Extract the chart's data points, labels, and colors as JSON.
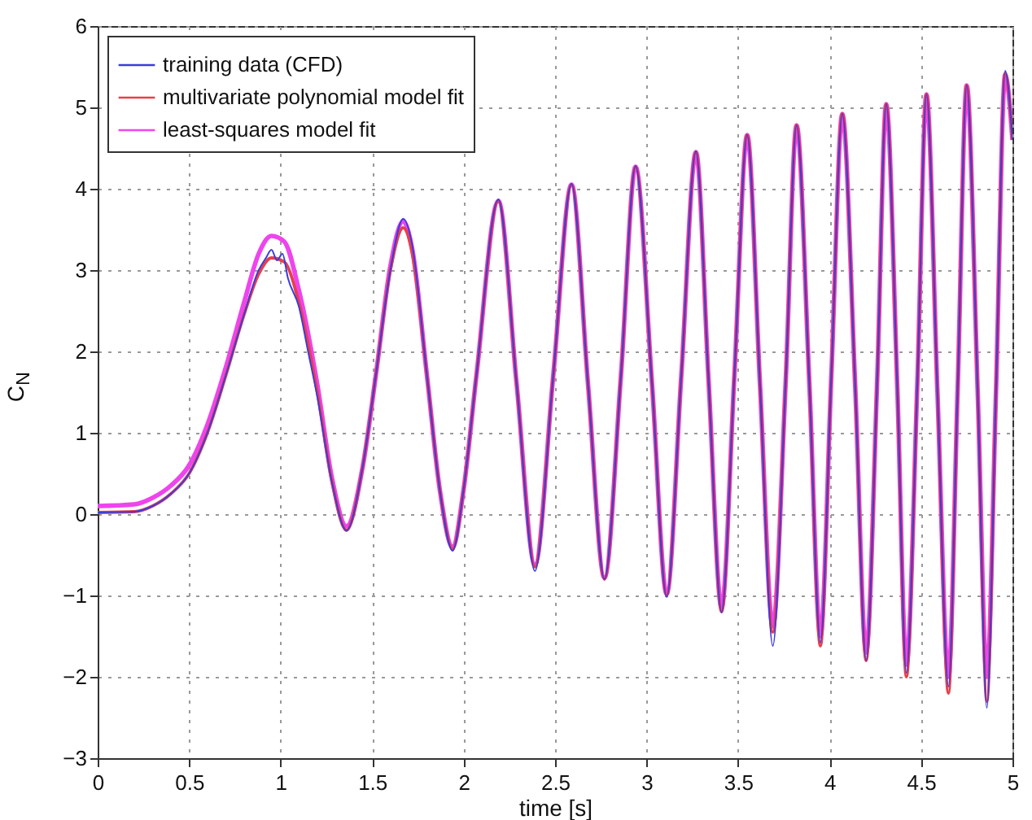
{
  "chart_data": {
    "type": "line",
    "xlabel": "time [s]",
    "ylabel": "C$_{N}$",
    "xlim": [
      0,
      5
    ],
    "ylim": [
      -3,
      6
    ],
    "xticks": [
      0,
      0.5,
      1,
      1.5,
      2,
      2.5,
      3,
      3.5,
      4,
      4.5,
      5
    ],
    "yticks": [
      -3,
      -2,
      -1,
      0,
      1,
      2,
      3,
      4,
      5,
      6
    ],
    "grid": true,
    "legend": "top left",
    "line_style": "solid",
    "marker": "none",
    "series": [
      {
        "name": "training data (CFD)",
        "color": "#3c3cdc",
        "x": [
          0,
          0.2,
          0.3,
          0.4,
          0.5,
          0.6,
          0.7,
          0.8,
          0.88,
          0.92,
          0.95,
          0.98,
          1.01,
          1.04,
          1.1,
          1.15,
          1.2,
          1.28,
          1.36,
          1.45,
          1.52,
          1.6,
          1.67,
          1.72,
          1.8,
          1.87,
          1.94,
          2.0,
          2.07,
          2.19,
          2.29,
          2.39,
          2.49,
          2.59,
          2.68,
          2.77,
          2.86,
          2.94,
          3.03,
          3.11,
          3.19,
          3.27,
          3.34,
          3.41,
          3.48,
          3.55,
          3.62,
          3.69,
          3.76,
          3.82,
          3.89,
          3.95,
          4.01,
          4.07,
          4.14,
          4.2,
          4.26,
          4.31,
          4.37,
          4.42,
          4.48,
          4.53,
          4.59,
          4.65,
          4.7,
          4.75,
          4.81,
          4.86,
          4.91,
          4.96,
          5.0
        ],
        "values": [
          0.02,
          0.03,
          0.1,
          0.25,
          0.5,
          1.0,
          1.7,
          2.45,
          3.0,
          3.15,
          3.25,
          3.12,
          3.2,
          2.9,
          2.55,
          2.0,
          1.45,
          0.4,
          -0.2,
          0.6,
          1.7,
          3.0,
          3.63,
          3.3,
          1.7,
          0.3,
          -0.45,
          0.3,
          1.7,
          3.87,
          1.6,
          -0.7,
          1.7,
          4.06,
          1.6,
          -0.8,
          1.7,
          4.28,
          1.6,
          -1.02,
          1.7,
          4.46,
          1.6,
          -1.21,
          1.7,
          4.66,
          1.6,
          -1.62,
          1.6,
          4.78,
          1.6,
          -1.58,
          1.7,
          4.92,
          1.6,
          -1.8,
          1.6,
          5.04,
          1.6,
          -1.95,
          1.6,
          5.16,
          1.5,
          -2.12,
          1.5,
          5.27,
          1.5,
          -2.38,
          1.5,
          5.45,
          4.6
        ]
      },
      {
        "name": "multivariate polynomial model fit",
        "color": "#e8404a",
        "x": [
          0,
          0.2,
          0.3,
          0.4,
          0.5,
          0.6,
          0.7,
          0.8,
          0.88,
          0.95,
          1.02,
          1.1,
          1.2,
          1.28,
          1.36,
          1.45,
          1.52,
          1.6,
          1.67,
          1.72,
          1.8,
          1.87,
          1.94,
          2.0,
          2.07,
          2.19,
          2.29,
          2.39,
          2.49,
          2.59,
          2.68,
          2.77,
          2.86,
          2.94,
          3.03,
          3.11,
          3.19,
          3.27,
          3.34,
          3.41,
          3.48,
          3.55,
          3.62,
          3.69,
          3.76,
          3.82,
          3.89,
          3.95,
          4.01,
          4.07,
          4.14,
          4.2,
          4.26,
          4.31,
          4.37,
          4.42,
          4.48,
          4.53,
          4.59,
          4.65,
          4.7,
          4.75,
          4.81,
          4.86,
          4.91,
          4.96,
          5.0
        ],
        "values": [
          0.02,
          0.03,
          0.1,
          0.25,
          0.5,
          1.0,
          1.7,
          2.45,
          2.95,
          3.15,
          3.1,
          2.6,
          1.5,
          0.4,
          -0.2,
          0.6,
          1.7,
          3.0,
          3.52,
          3.2,
          1.7,
          0.3,
          -0.43,
          0.3,
          1.7,
          3.85,
          1.6,
          -0.65,
          1.7,
          4.05,
          1.6,
          -0.8,
          1.7,
          4.27,
          1.6,
          -1.0,
          1.7,
          4.45,
          1.6,
          -1.2,
          1.7,
          4.66,
          1.6,
          -1.45,
          1.6,
          4.78,
          1.6,
          -1.62,
          1.7,
          4.92,
          1.6,
          -1.8,
          1.6,
          5.04,
          1.6,
          -2.0,
          1.6,
          5.16,
          1.5,
          -2.2,
          1.5,
          5.27,
          1.5,
          -2.3,
          1.5,
          5.42,
          4.6
        ]
      },
      {
        "name": "least-squares model fit",
        "color": "#ee44ee",
        "x": [
          0,
          0.2,
          0.3,
          0.4,
          0.5,
          0.6,
          0.7,
          0.8,
          0.88,
          0.95,
          1.02,
          1.1,
          1.2,
          1.28,
          1.36,
          1.45,
          1.52,
          1.6,
          1.67,
          1.72,
          1.8,
          1.87,
          1.94,
          2.0,
          2.07,
          2.19,
          2.29,
          2.39,
          2.49,
          2.59,
          2.68,
          2.77,
          2.86,
          2.94,
          3.03,
          3.11,
          3.19,
          3.27,
          3.34,
          3.41,
          3.48,
          3.55,
          3.62,
          3.69,
          3.76,
          3.82,
          3.89,
          3.95,
          4.01,
          4.07,
          4.14,
          4.2,
          4.26,
          4.31,
          4.37,
          4.42,
          4.48,
          4.53,
          4.59,
          4.65,
          4.7,
          4.75,
          4.81,
          4.86,
          4.91,
          4.96,
          5.0
        ],
        "values": [
          0.1,
          0.12,
          0.2,
          0.35,
          0.6,
          1.1,
          1.8,
          2.6,
          3.2,
          3.42,
          3.35,
          2.75,
          1.6,
          0.45,
          -0.15,
          0.6,
          1.7,
          3.05,
          3.6,
          3.25,
          1.7,
          0.3,
          -0.4,
          0.3,
          1.7,
          3.85,
          1.6,
          -0.62,
          1.7,
          4.05,
          1.6,
          -0.78,
          1.7,
          4.27,
          1.6,
          -0.98,
          1.7,
          4.45,
          1.6,
          -1.15,
          1.7,
          4.66,
          1.6,
          -1.38,
          1.6,
          4.78,
          1.6,
          -1.5,
          1.7,
          4.92,
          1.6,
          -1.7,
          1.6,
          5.04,
          1.6,
          -1.85,
          1.6,
          5.16,
          1.5,
          -2.0,
          1.5,
          5.27,
          1.5,
          -2.0,
          1.5,
          5.4,
          4.6
        ]
      }
    ]
  }
}
